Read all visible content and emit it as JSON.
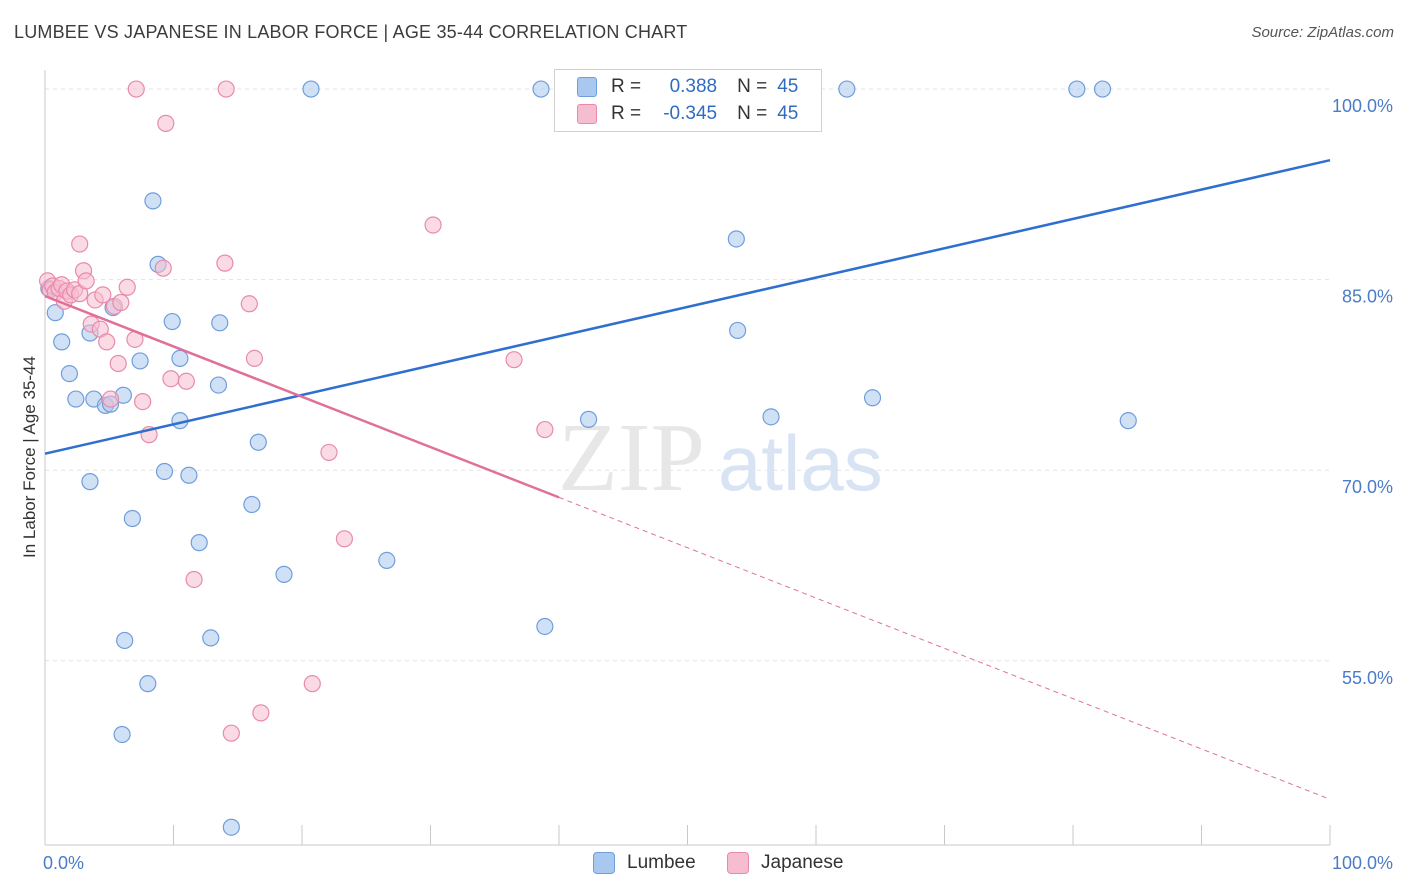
{
  "header": {
    "title": "LUMBEE VS JAPANESE IN LABOR FORCE | AGE 35-44 CORRELATION CHART",
    "source": "Source: ZipAtlas.com"
  },
  "watermark": {
    "zip": "ZIP",
    "atlas": "atlas"
  },
  "legend": {
    "rows": [
      {
        "r_label": "R =",
        "r_value": "0.388",
        "n_label": "N =",
        "n_value": "45"
      },
      {
        "r_label": "R =",
        "r_value": "-0.345",
        "n_label": "N =",
        "n_value": "45"
      }
    ]
  },
  "chart_data": {
    "type": "scatter",
    "title": "LUMBEE VS JAPANESE IN LABOR FORCE | AGE 35-44 CORRELATION CHART",
    "xlabel": "",
    "ylabel": "In Labor Force | Age 35-44",
    "xlim": [
      0,
      100
    ],
    "ylim": [
      40.5,
      101.5
    ],
    "x_tick_labels": [
      "0.0%",
      "100.0%"
    ],
    "y_ticks": [
      55,
      70,
      85,
      100
    ],
    "y_tick_labels": [
      "55.0%",
      "70.0%",
      "85.0%",
      "100.0%"
    ],
    "colors": {
      "lumbee_fill": "#a9c8ef",
      "lumbee_stroke": "#6f9edc",
      "lumbee_line": "#2e6fcf",
      "japanese_fill": "#f6bdd0",
      "japanese_stroke": "#e98aaa",
      "japanese_line": "#e0709a",
      "grid": "#e3e3e3",
      "axis": "#c8c8c8"
    },
    "series": [
      {
        "name": "Lumbee",
        "R": 0.388,
        "N": 45,
        "trend": {
          "x0": 0,
          "y0": 71.3,
          "x1": 100,
          "y1": 94.4,
          "dashed_from": null
        },
        "points": [
          [
            0.3,
            84.3
          ],
          [
            0.8,
            82.4
          ],
          [
            1.3,
            80.1
          ],
          [
            1.9,
            77.6
          ],
          [
            2.4,
            75.6
          ],
          [
            3.5,
            80.8
          ],
          [
            3.5,
            69.1
          ],
          [
            3.8,
            75.6
          ],
          [
            4.7,
            75.1
          ],
          [
            5.3,
            82.8
          ],
          [
            5.1,
            75.2
          ],
          [
            6.1,
            75.9
          ],
          [
            6.2,
            56.6
          ],
          [
            6.0,
            49.2
          ],
          [
            6.8,
            66.2
          ],
          [
            7.4,
            78.6
          ],
          [
            8.0,
            53.2
          ],
          [
            8.4,
            91.2
          ],
          [
            8.8,
            86.2
          ],
          [
            9.3,
            69.9
          ],
          [
            9.9,
            81.7
          ],
          [
            10.5,
            78.8
          ],
          [
            10.5,
            73.9
          ],
          [
            11.2,
            69.6
          ],
          [
            12.0,
            64.3
          ],
          [
            12.9,
            56.8
          ],
          [
            13.5,
            76.7
          ],
          [
            14.5,
            41.9
          ],
          [
            13.6,
            81.6
          ],
          [
            16.1,
            67.3
          ],
          [
            16.6,
            72.2
          ],
          [
            18.6,
            61.8
          ],
          [
            20.7,
            100.0
          ],
          [
            26.6,
            62.9
          ],
          [
            38.6,
            100.0
          ],
          [
            38.9,
            57.7
          ],
          [
            42.3,
            74.0
          ],
          [
            53.8,
            88.2
          ],
          [
            53.9,
            81.0
          ],
          [
            56.5,
            74.2
          ],
          [
            62.4,
            100.0
          ],
          [
            64.4,
            75.7
          ],
          [
            80.3,
            100.0
          ],
          [
            82.3,
            100.0
          ],
          [
            84.3,
            73.9
          ]
        ]
      },
      {
        "name": "Japanese",
        "R": -0.345,
        "N": 45,
        "trend": {
          "x0": 0,
          "y0": 83.7,
          "x1": 100,
          "y1": 44.1,
          "dashed_from": 40
        },
        "points": [
          [
            0.2,
            84.9
          ],
          [
            0.4,
            84.2
          ],
          [
            0.6,
            84.5
          ],
          [
            0.8,
            84.0
          ],
          [
            1.1,
            84.3
          ],
          [
            1.3,
            84.6
          ],
          [
            1.5,
            83.3
          ],
          [
            1.7,
            84.1
          ],
          [
            2.0,
            83.8
          ],
          [
            2.3,
            84.2
          ],
          [
            2.7,
            83.9
          ],
          [
            2.7,
            87.8
          ],
          [
            3.0,
            85.7
          ],
          [
            3.2,
            84.9
          ],
          [
            3.6,
            81.5
          ],
          [
            3.9,
            83.4
          ],
          [
            4.3,
            81.1
          ],
          [
            4.5,
            83.8
          ],
          [
            4.8,
            80.1
          ],
          [
            5.1,
            75.6
          ],
          [
            5.4,
            82.9
          ],
          [
            5.7,
            78.4
          ],
          [
            5.9,
            83.2
          ],
          [
            6.4,
            84.4
          ],
          [
            7.0,
            80.3
          ],
          [
            7.6,
            75.4
          ],
          [
            8.1,
            72.8
          ],
          [
            7.1,
            100.0
          ],
          [
            9.4,
            97.3
          ],
          [
            9.2,
            85.9
          ],
          [
            9.8,
            77.2
          ],
          [
            11.0,
            77.0
          ],
          [
            11.6,
            61.4
          ],
          [
            14.0,
            86.3
          ],
          [
            14.1,
            100.0
          ],
          [
            14.5,
            49.3
          ],
          [
            15.9,
            83.1
          ],
          [
            16.3,
            78.8
          ],
          [
            16.8,
            50.9
          ],
          [
            20.8,
            53.2
          ],
          [
            22.1,
            71.4
          ],
          [
            23.3,
            64.6
          ],
          [
            30.2,
            89.3
          ],
          [
            36.5,
            78.7
          ],
          [
            38.9,
            73.2
          ]
        ]
      }
    ]
  }
}
